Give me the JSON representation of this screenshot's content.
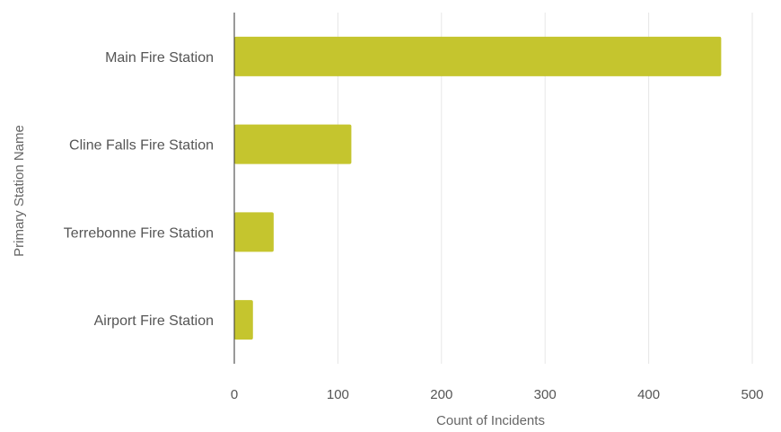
{
  "chart_data": {
    "type": "bar",
    "orientation": "horizontal",
    "categories": [
      "Main Fire Station",
      "Cline Falls Fire Station",
      "Terrebonne Fire Station",
      "Airport Fire Station"
    ],
    "values": [
      470,
      113,
      38,
      18
    ],
    "xlabel": "Count of Incidents",
    "ylabel": "Primary Station Name",
    "xlim": [
      0,
      500
    ],
    "xticks": [
      0,
      100,
      200,
      300,
      400,
      500
    ],
    "grid": true,
    "legend": "none",
    "bar_color": "#c5c52e",
    "axis_color": "#333333",
    "grid_color": "#e6e6e6",
    "text_color": "#555555"
  }
}
